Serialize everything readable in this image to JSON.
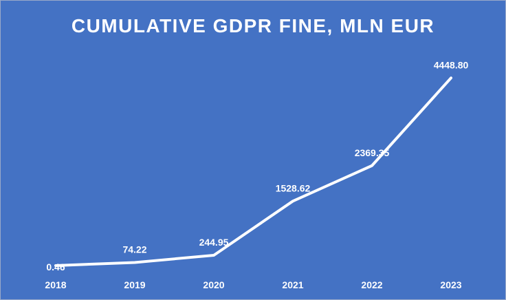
{
  "chart_data": {
    "type": "line",
    "title": "CUMULATIVE GDPR FINE, MLN EUR",
    "xlabel": "",
    "ylabel": "",
    "categories": [
      "2018",
      "2019",
      "2020",
      "2021",
      "2022",
      "2023"
    ],
    "series": [
      {
        "values": [
          0.46,
          74.22,
          244.95,
          1528.62,
          2369.35,
          4448.8
        ],
        "labels": [
          "0.46",
          "74.22",
          "244.95",
          "1528.62",
          "2369.35",
          "4448.80"
        ]
      }
    ],
    "ylim": [
      0,
      5000
    ],
    "grid": false,
    "legend": "none",
    "colors": {
      "background": "#4472c4",
      "line": "#ffffff",
      "text": "#ffffff"
    }
  }
}
